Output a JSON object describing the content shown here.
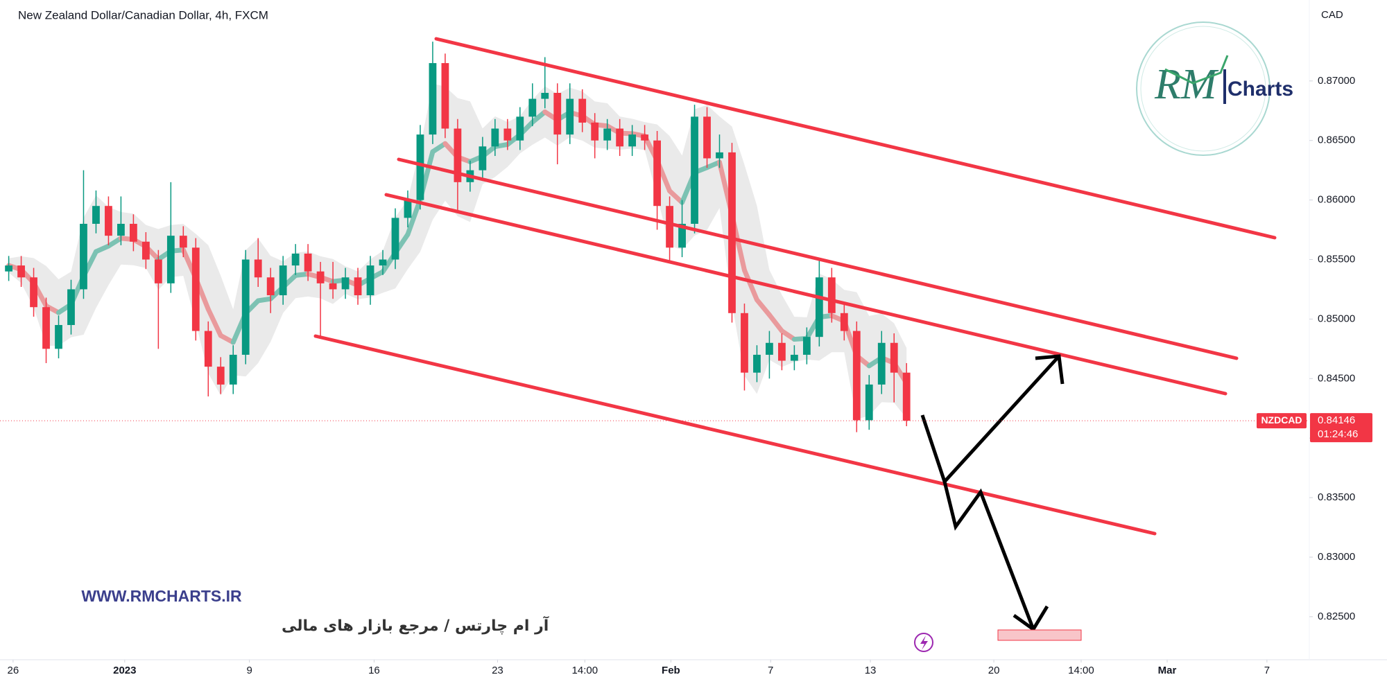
{
  "chart_data": {
    "type": "candlestick",
    "title": "New Zealand Dollar/Canadian Dollar, 4h, FXCM",
    "y_axis_label": "CAD",
    "symbol": "NZDCAD",
    "last_price": 0.84146,
    "countdown": "01:24:46",
    "up_color": "#089981",
    "down_color": "#f23645",
    "grid": false,
    "xlim": [
      -0.7,
      104.3
    ],
    "xticks": [
      {
        "value": 0.35,
        "label": "26"
      },
      {
        "value": 9.3,
        "label": "2023"
      },
      {
        "value": 19.3,
        "label": "9"
      },
      {
        "value": 29.3,
        "label": "16"
      },
      {
        "value": 39.2,
        "label": "23"
      },
      {
        "value": 46.2,
        "label": "14:00"
      },
      {
        "value": 53.1,
        "label": "Feb"
      },
      {
        "value": 61.1,
        "label": "7"
      },
      {
        "value": 69.1,
        "label": "13"
      },
      {
        "value": 79.0,
        "label": "20"
      },
      {
        "value": 86.0,
        "label": "14:00"
      },
      {
        "value": 92.9,
        "label": "Mar"
      },
      {
        "value": 100.9,
        "label": "7"
      }
    ],
    "ylim": [
      0.8215,
      0.8768
    ],
    "yticks": [
      {
        "value": 0.825,
        "label": "0.82500"
      },
      {
        "value": 0.83,
        "label": "0.83000"
      },
      {
        "value": 0.835,
        "label": "0.83500"
      },
      {
        "value": 0.84,
        "label": "0.84000"
      },
      {
        "value": 0.845,
        "label": "0.84500"
      },
      {
        "value": 0.85,
        "label": "0.85000"
      },
      {
        "value": 0.855,
        "label": "0.85500"
      },
      {
        "value": 0.86,
        "label": "0.86000"
      },
      {
        "value": 0.865,
        "label": "0.86500"
      },
      {
        "value": 0.87,
        "label": "0.87000"
      }
    ],
    "open": [
      0.854,
      0.8545,
      0.8535,
      0.851,
      0.8475,
      0.8495,
      0.8525,
      0.858,
      0.8595,
      0.857,
      0.858,
      0.8565,
      0.855,
      0.853,
      0.857,
      0.856,
      0.849,
      0.846,
      0.8445,
      0.847,
      0.855,
      0.8535,
      0.852,
      0.8545,
      0.8555,
      0.854,
      0.853,
      0.8525,
      0.8535,
      0.852,
      0.8545,
      0.855,
      0.8585,
      0.86,
      0.8655,
      0.8715,
      0.866,
      0.8615,
      0.8625,
      0.8645,
      0.866,
      0.865,
      0.867,
      0.8685,
      0.869,
      0.8655,
      0.8685,
      0.8665,
      0.865,
      0.866,
      0.8645,
      0.8655,
      0.865,
      0.8595,
      0.856,
      0.858,
      0.867,
      0.8635,
      0.864,
      0.8505,
      0.8455,
      0.847,
      0.848,
      0.8465,
      0.847,
      0.8485,
      0.8535,
      0.8505,
      0.849,
      0.8415,
      0.8445,
      0.848,
      0.8455
    ],
    "high": [
      0.8553,
      0.8553,
      0.8543,
      0.8518,
      0.8503,
      0.8533,
      0.8625,
      0.8608,
      0.8603,
      0.8603,
      0.8588,
      0.8573,
      0.8558,
      0.8615,
      0.8578,
      0.8568,
      0.8498,
      0.8468,
      0.8478,
      0.8558,
      0.8568,
      0.8543,
      0.8553,
      0.8563,
      0.8563,
      0.8548,
      0.8548,
      0.8543,
      0.8543,
      0.8553,
      0.8558,
      0.8593,
      0.8608,
      0.8663,
      0.8733,
      0.8723,
      0.8668,
      0.8633,
      0.8653,
      0.8668,
      0.8668,
      0.8678,
      0.8698,
      0.872,
      0.8698,
      0.8698,
      0.8693,
      0.8673,
      0.8668,
      0.8668,
      0.8663,
      0.8663,
      0.8658,
      0.8603,
      0.86,
      0.868,
      0.8678,
      0.8655,
      0.8648,
      0.8513,
      0.8478,
      0.849,
      0.8488,
      0.8478,
      0.8493,
      0.855,
      0.8543,
      0.8513,
      0.8498,
      0.8453,
      0.849,
      0.8488,
      0.8463
    ],
    "low": [
      0.8532,
      0.8527,
      0.8502,
      0.8463,
      0.8467,
      0.8487,
      0.8517,
      0.8572,
      0.8562,
      0.8562,
      0.8557,
      0.8542,
      0.8475,
      0.8522,
      0.8552,
      0.8482,
      0.8435,
      0.8437,
      0.8437,
      0.8462,
      0.8527,
      0.8505,
      0.8512,
      0.8537,
      0.8532,
      0.8485,
      0.8517,
      0.8517,
      0.8512,
      0.8512,
      0.8537,
      0.8542,
      0.8577,
      0.8592,
      0.8647,
      0.8652,
      0.859,
      0.8607,
      0.8617,
      0.8637,
      0.8642,
      0.8642,
      0.8662,
      0.8677,
      0.863,
      0.8647,
      0.8657,
      0.8635,
      0.8642,
      0.8637,
      0.8637,
      0.8642,
      0.8575,
      0.8548,
      0.8552,
      0.8572,
      0.8627,
      0.8627,
      0.8497,
      0.844,
      0.8447,
      0.845,
      0.8457,
      0.8457,
      0.8462,
      0.8477,
      0.8497,
      0.8482,
      0.8405,
      0.8407,
      0.8437,
      0.843,
      0.841
    ],
    "close": [
      0.8545,
      0.8535,
      0.851,
      0.8475,
      0.8495,
      0.8525,
      0.858,
      0.8595,
      0.857,
      0.858,
      0.8565,
      0.855,
      0.853,
      0.857,
      0.856,
      0.849,
      0.846,
      0.8445,
      0.847,
      0.855,
      0.8535,
      0.852,
      0.8545,
      0.8555,
      0.854,
      0.853,
      0.8525,
      0.8535,
      0.852,
      0.8545,
      0.855,
      0.8585,
      0.86,
      0.8655,
      0.8715,
      0.866,
      0.8615,
      0.8625,
      0.8645,
      0.866,
      0.865,
      0.867,
      0.8685,
      0.869,
      0.8655,
      0.8685,
      0.8665,
      0.865,
      0.866,
      0.8645,
      0.8655,
      0.865,
      0.8595,
      0.856,
      0.858,
      0.867,
      0.8635,
      0.864,
      0.8505,
      0.8455,
      0.847,
      0.848,
      0.8465,
      0.847,
      0.8485,
      0.8535,
      0.8505,
      0.849,
      0.8415,
      0.8445,
      0.848,
      0.8455,
      0.84146
    ]
  },
  "logo": {
    "mark": "RM",
    "text": "Charts"
  },
  "watermark": {
    "url": "WWW.RMCHARTS.IR",
    "tagline": "آر ام چارتس / مرجع بازار های مالی"
  }
}
